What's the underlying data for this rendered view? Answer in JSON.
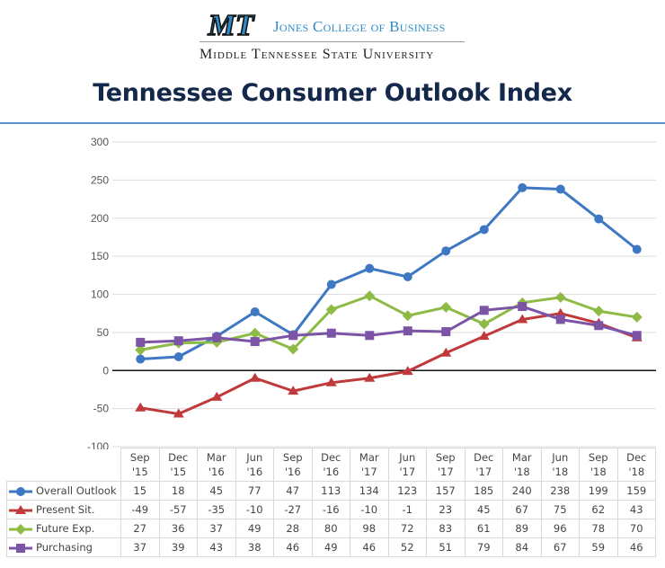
{
  "header": {
    "logo_text": "MT",
    "college": "Jones College of Business",
    "university": "Middle Tennessee State University",
    "brand_color": "#2e8bc9"
  },
  "title": "Tennessee Consumer Outlook Index",
  "chart_data": {
    "type": "line",
    "title": "Tennessee Consumer Outlook Index",
    "xlabel": "",
    "ylabel": "",
    "ylim": [
      -100,
      300
    ],
    "yticks": [
      300,
      250,
      200,
      150,
      100,
      50,
      0,
      -50,
      -100
    ],
    "grid": true,
    "legend": "data-table-bottom",
    "categories": [
      [
        "Sep",
        "'15"
      ],
      [
        "Dec",
        "'15"
      ],
      [
        "Mar",
        "'16"
      ],
      [
        "Jun",
        "'16"
      ],
      [
        "Sep",
        "'16"
      ],
      [
        "Dec",
        "'16"
      ],
      [
        "Mar",
        "'17"
      ],
      [
        "Jun",
        "'17"
      ],
      [
        "Sep",
        "'17"
      ],
      [
        "Dec",
        "'17"
      ],
      [
        "Mar",
        "'18"
      ],
      [
        "Jun",
        "'18"
      ],
      [
        "Sep",
        "'18"
      ],
      [
        "Dec",
        "'18"
      ]
    ],
    "series": [
      {
        "name": "Overall Outlook",
        "color": "#3f78c2",
        "marker": "circle",
        "values": [
          15,
          18,
          45,
          77,
          47,
          113,
          134,
          123,
          157,
          185,
          240,
          238,
          199,
          159
        ]
      },
      {
        "name": "Present Sit.",
        "color": "#c0393b",
        "marker": "triangle",
        "values": [
          -49,
          -57,
          -35,
          -10,
          -27,
          -16,
          -10,
          -1,
          23,
          45,
          67,
          75,
          62,
          43
        ]
      },
      {
        "name": "Future Exp.",
        "color": "#8dbb45",
        "marker": "diamond",
        "values": [
          27,
          36,
          37,
          49,
          28,
          80,
          98,
          72,
          83,
          61,
          89,
          96,
          78,
          70
        ]
      },
      {
        "name": "Purchasing",
        "color": "#7c54a6",
        "marker": "square",
        "values": [
          37,
          39,
          43,
          38,
          46,
          49,
          46,
          52,
          51,
          79,
          84,
          67,
          59,
          46
        ]
      }
    ]
  }
}
